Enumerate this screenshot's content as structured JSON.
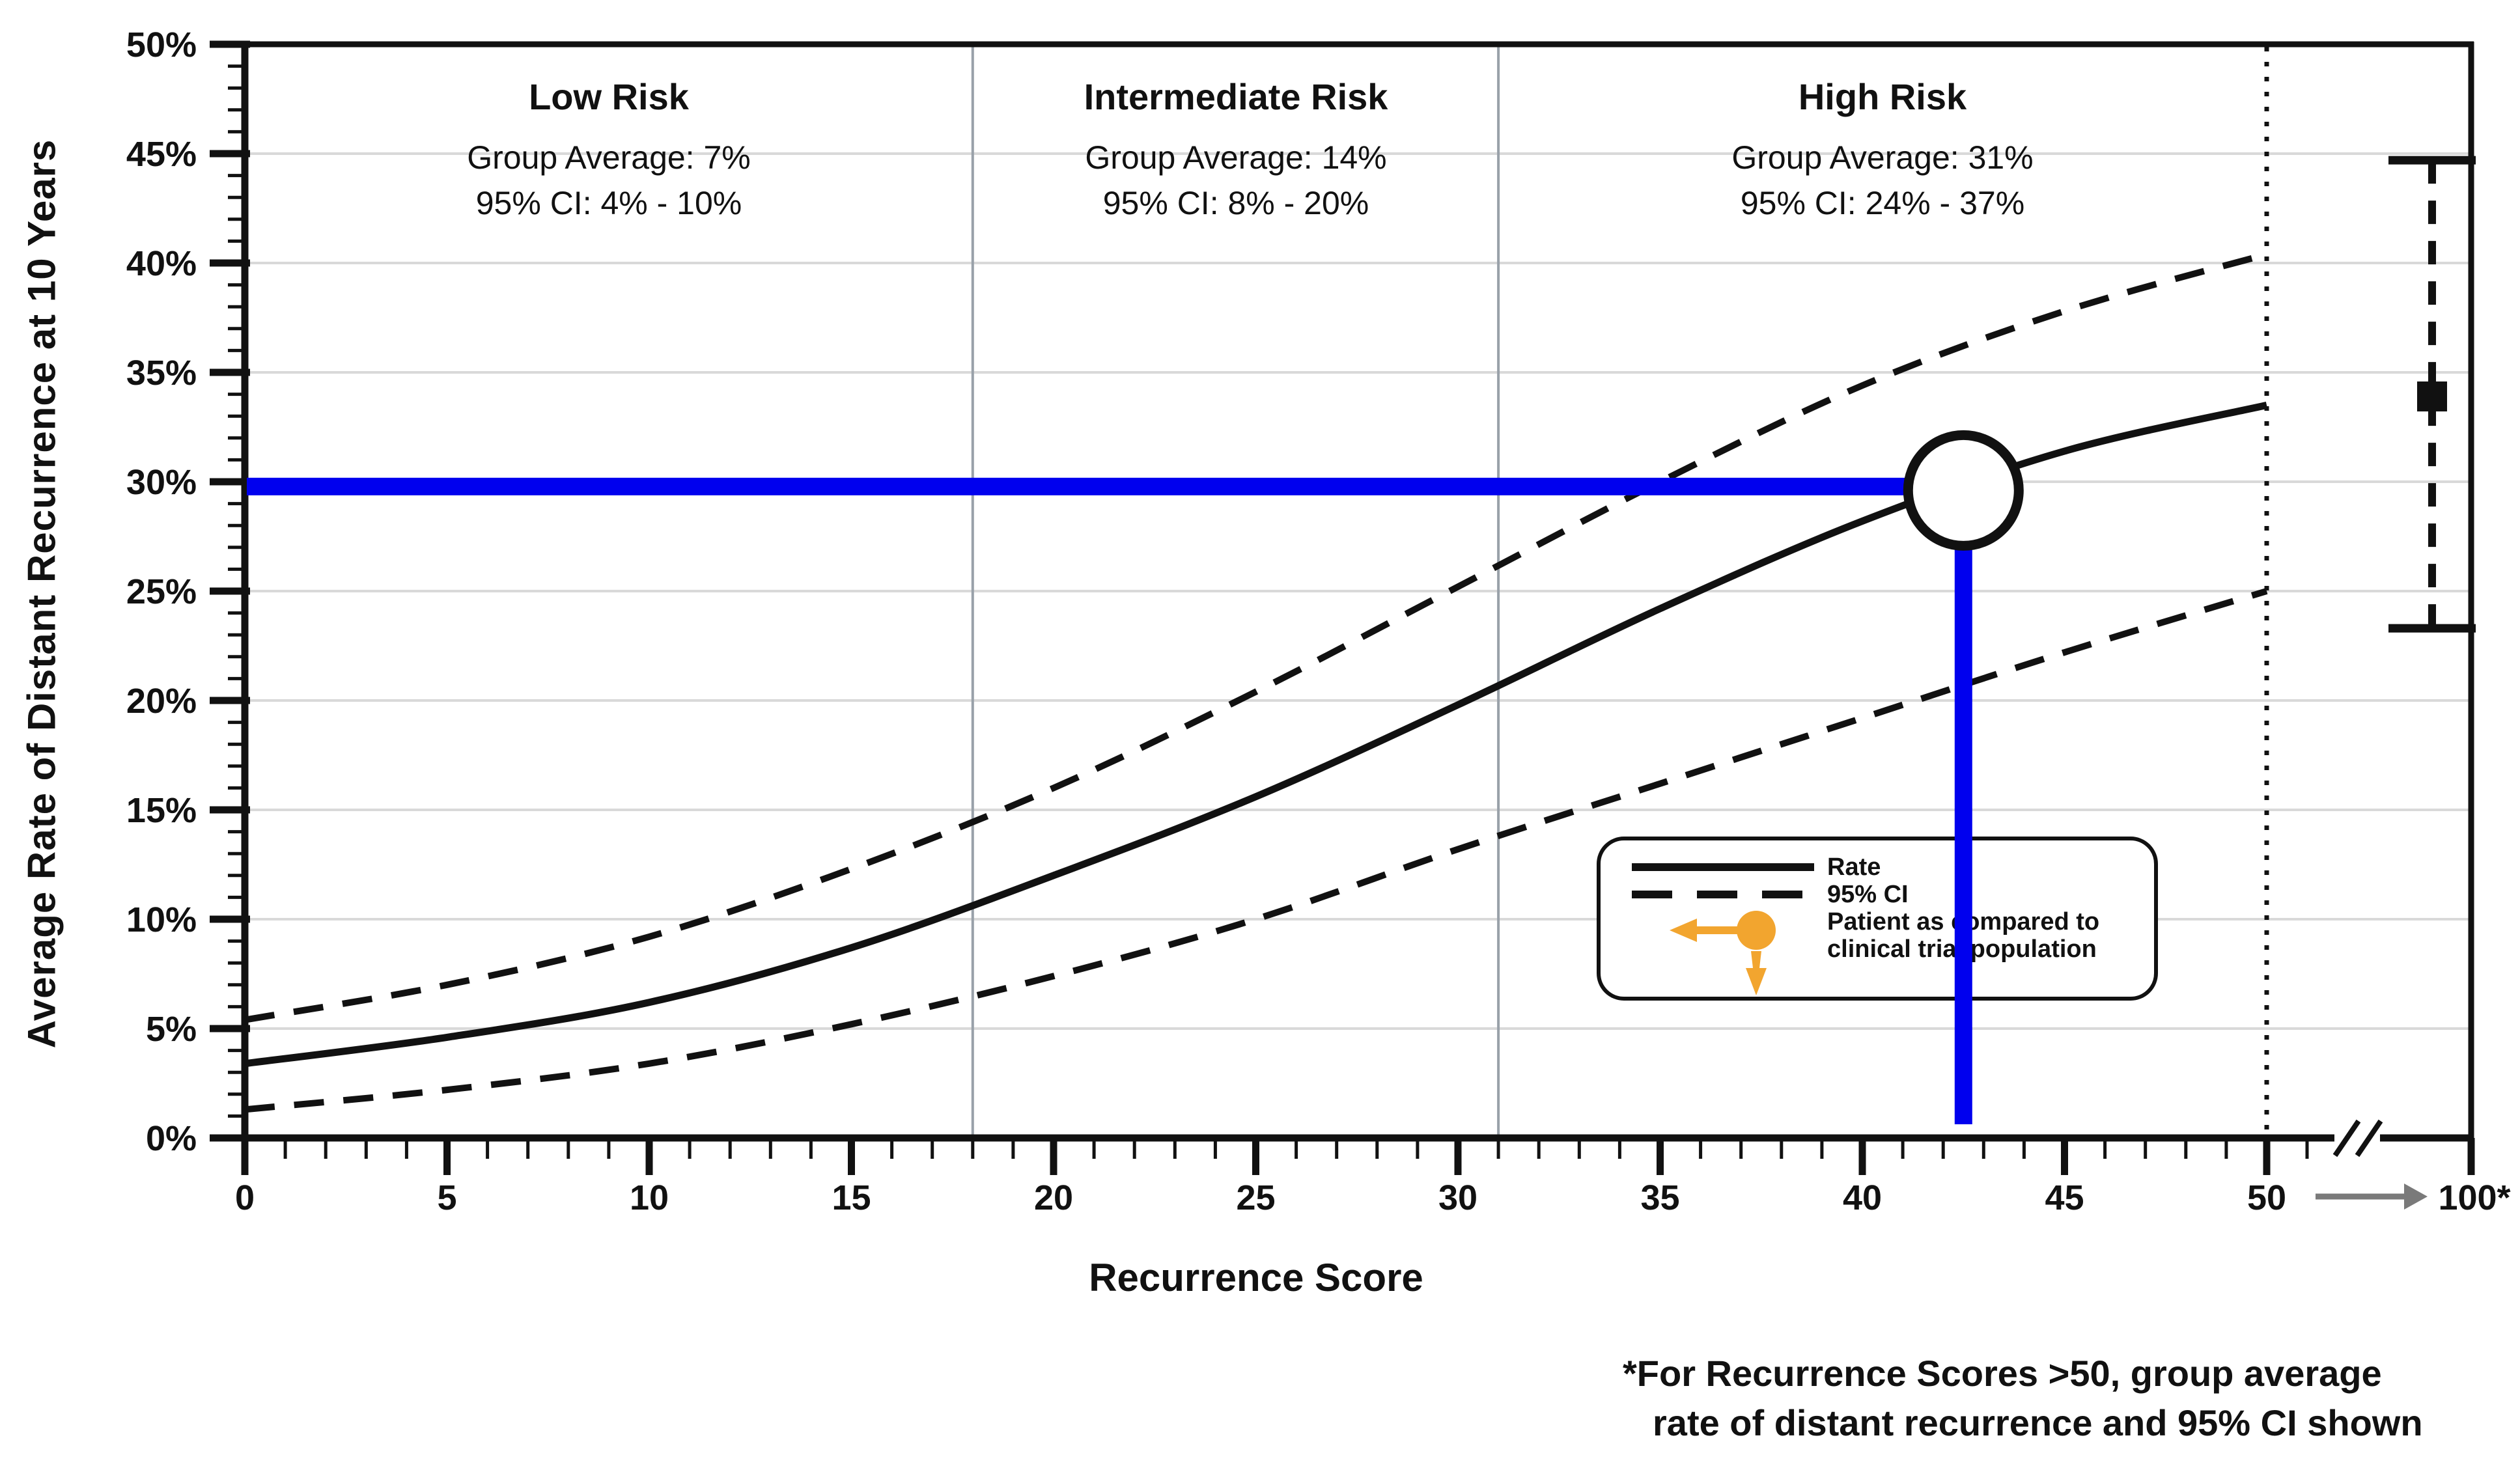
{
  "colors": {
    "accent_blue": "#0000EE",
    "accent_orange": "#F2A52F",
    "grid_gray": "#D9D9D9",
    "divider_gray": "#99A1A9",
    "axis_black": "#111111",
    "arrow_gray": "#7A7A7A",
    "background": "#FFFFFF"
  },
  "y_axis": {
    "title": "Average Rate of Distant Recurrence at 10 Years",
    "tick_labels": [
      "0%",
      "5%",
      "10%",
      "15%",
      "20%",
      "25%",
      "30%",
      "35%",
      "40%",
      "45%",
      "50%"
    ]
  },
  "x_axis": {
    "title": "Recurrence Score",
    "tick_labels": [
      "0",
      "5",
      "10",
      "15",
      "20",
      "25",
      "30",
      "35",
      "40",
      "45",
      "50"
    ],
    "extension_label": "100*"
  },
  "risk_zones": [
    {
      "label": "Low Risk",
      "score_range": [
        0,
        18
      ],
      "group_average_line": "Group Average: 7%",
      "ci_line": "95% CI: 4% - 10%"
    },
    {
      "label": "Intermediate Risk",
      "score_range": [
        18,
        31
      ],
      "group_average_line": "Group Average: 14%",
      "ci_line": "95% CI: 8% - 20%"
    },
    {
      "label": "High Risk",
      "score_range": [
        31,
        50
      ],
      "group_average_line": "Group Average: 31%",
      "ci_line": "95% CI: 24% - 37%"
    }
  ],
  "legend": {
    "rate_label": "Rate",
    "ci_label": "95% CI",
    "patient_label_line1": "Patient as compared to",
    "patient_label_line2": "clinical trial population"
  },
  "footnote": {
    "line1": "*For Recurrence Scores >50, group average",
    "line2": "rate of distant recurrence and 95% CI shown"
  },
  "chart_data": {
    "type": "line",
    "title": "",
    "xlabel": "Recurrence Score",
    "ylabel": "Average Rate of Distant Recurrence at 10 Years",
    "xlim": [
      0,
      50
    ],
    "ylim_pct": [
      0,
      50
    ],
    "grid": "horizontal gridlines every 5%, light gray",
    "legend_position": "lower right, boxed",
    "x": [
      0,
      5,
      10,
      15,
      20,
      25,
      30,
      35,
      40,
      45,
      50
    ],
    "series": [
      {
        "name": "Rate",
        "style": "solid",
        "values_pct": [
          3.4,
          4.6,
          6.2,
          8.7,
          12.0,
          15.6,
          19.8,
          24.2,
          28.2,
          31.4,
          33.5
        ]
      },
      {
        "name": "95% CI upper",
        "style": "dashed",
        "values_pct": [
          5.4,
          7.0,
          9.2,
          12.3,
          16.0,
          20.4,
          25.2,
          30.0,
          34.4,
          37.8,
          40.4
        ]
      },
      {
        "name": "95% CI lower",
        "style": "dashed",
        "values_pct": [
          1.3,
          2.2,
          3.4,
          5.2,
          7.4,
          10.0,
          13.2,
          16.2,
          19.2,
          22.2,
          25.0
        ]
      }
    ],
    "zone_divider_scores": [
      18,
      31
    ],
    "dotted_line_score": 50,
    "patient": {
      "recurrence_score": 42.5,
      "rate_pct": 29.6
    },
    "over_50_group": {
      "average_pct": 33.9,
      "ci_low_pct": 23.3,
      "ci_high_pct": 44.7,
      "plotted_at": "100*"
    }
  }
}
